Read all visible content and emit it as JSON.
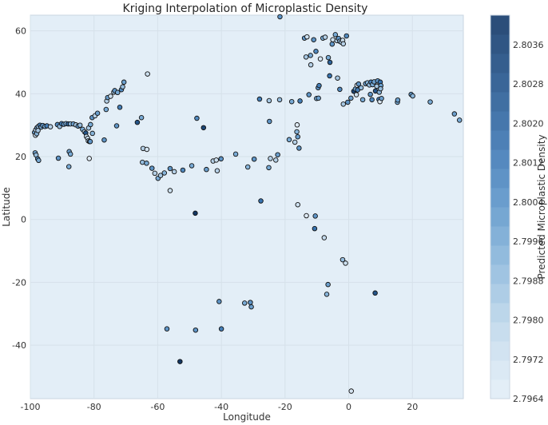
{
  "chart_data": {
    "type": "scatter",
    "title": "Kriging Interpolation of Microplastic Density",
    "xlabel": "Longitude",
    "ylabel": "Latitude",
    "xlim": [
      -100,
      36
    ],
    "ylim": [
      -57,
      65
    ],
    "xticks": [
      -100,
      -80,
      -60,
      -40,
      -20,
      0,
      20
    ],
    "yticks": [
      -40,
      -20,
      0,
      20,
      40,
      60
    ],
    "grid": true,
    "background_color": "#e3eef7",
    "colorbar": {
      "label": "Predicted Microplastic Density",
      "min": 2.7964,
      "max": 2.8042,
      "ticks": [
        "2.7964",
        "2.7972",
        "2.7980",
        "2.7988",
        "2.7996",
        "2.8004",
        "2.8012",
        "2.8020",
        "2.8028",
        "2.8036"
      ],
      "colors": [
        "#e3eef7",
        "#dbe9f4",
        "#d2e3f1",
        "#c8ddee",
        "#bcd6ea",
        "#aecde6",
        "#a0c4e2",
        "#92bbdd",
        "#84b1d8",
        "#76a7d2",
        "#6a9dcd",
        "#5f93c6",
        "#5589bf",
        "#4d80b6",
        "#4677ac",
        "#406fa2",
        "#3a6698",
        "#355e8e",
        "#305684",
        "#2b4e7a"
      ]
    },
    "point_color_range": [
      "#f1f6fb",
      "#0a2850"
    ],
    "series": [
      {
        "values": [
          [
            -98.7,
            27.7,
            0.55
          ],
          [
            -98.3,
            28.5,
            0.3
          ],
          [
            -97.9,
            29.2,
            0.6
          ],
          [
            -97.5,
            29.6,
            0.4
          ],
          [
            -97.0,
            30.0,
            0.7
          ],
          [
            -96.6,
            29.4,
            0.5
          ],
          [
            -96.1,
            29.9,
            0.6
          ],
          [
            -95.4,
            29.6,
            0.5
          ],
          [
            -94.8,
            29.8,
            0.7
          ],
          [
            -98.4,
            26.8,
            0.2
          ],
          [
            -98.0,
            27.3,
            0.45
          ],
          [
            -97.6,
            28.3,
            0.35
          ],
          [
            -93.7,
            29.5,
            0.3
          ],
          [
            -91.5,
            30.2,
            0.65
          ],
          [
            -90.8,
            29.6,
            0.4
          ],
          [
            -90.2,
            30.5,
            0.7
          ],
          [
            -89.5,
            30.3,
            0.6
          ],
          [
            -88.8,
            30.5,
            0.5
          ],
          [
            -88.1,
            30.4,
            0.8
          ],
          [
            -87.4,
            30.4,
            0.45
          ],
          [
            -86.5,
            30.4,
            0.55
          ],
          [
            -85.7,
            30.1,
            0.35
          ],
          [
            -85.0,
            29.7,
            0.6
          ],
          [
            -84.4,
            30.0,
            0.4
          ],
          [
            -83.6,
            28.7,
            0.5
          ],
          [
            -83.0,
            27.9,
            0.3
          ],
          [
            -82.6,
            27.5,
            0.85
          ],
          [
            -82.4,
            26.4,
            0.2
          ],
          [
            -82.0,
            25.8,
            0.25
          ],
          [
            -81.8,
            25.0,
            0.3
          ],
          [
            -81.4,
            24.8,
            0.1
          ],
          [
            -81.7,
            29.1,
            0.35
          ],
          [
            -81.1,
            30.2,
            0.5
          ],
          [
            -80.5,
            27.4,
            0.45
          ],
          [
            -81.2,
            24.8,
            0.6
          ],
          [
            -98.5,
            21.2,
            0.55
          ],
          [
            -98.2,
            20.5,
            0.4
          ],
          [
            -97.7,
            19.3,
            0.65
          ],
          [
            -97.4,
            18.8,
            0.5
          ],
          [
            -91.2,
            19.5,
            0.6
          ],
          [
            -87.8,
            21.6,
            0.55
          ],
          [
            -87.4,
            20.8,
            0.5
          ],
          [
            -87.9,
            16.8,
            0.5
          ],
          [
            -81.5,
            19.4,
            0.1
          ],
          [
            -80.6,
            32.4,
            0.6
          ],
          [
            -79.7,
            33.0,
            0.3
          ],
          [
            -78.9,
            33.8,
            0.55
          ],
          [
            -76.8,
            25.3,
            0.6
          ],
          [
            -76.2,
            35.0,
            0.5
          ],
          [
            -76.0,
            37.7,
            0.3
          ],
          [
            -75.7,
            38.8,
            0.55
          ],
          [
            -74.8,
            39.2,
            0.2
          ],
          [
            -73.8,
            40.5,
            0.35
          ],
          [
            -73.5,
            41.0,
            0.6
          ],
          [
            -72.6,
            40.4,
            0.5
          ],
          [
            -71.4,
            41.3,
            0.65
          ],
          [
            -71.0,
            42.2,
            0.4
          ],
          [
            -70.6,
            43.7,
            0.55
          ],
          [
            -71.9,
            35.7,
            0.7
          ],
          [
            -72.9,
            29.8,
            0.6
          ],
          [
            -66.4,
            30.9,
            0.85
          ],
          [
            -65.1,
            32.4,
            0.5
          ],
          [
            -63.2,
            46.3,
            0.2
          ],
          [
            -64.6,
            22.6,
            0.3
          ],
          [
            -63.4,
            22.3,
            0.15
          ],
          [
            -64.8,
            18.2,
            0.4
          ],
          [
            -63.5,
            17.9,
            0.5
          ],
          [
            -61.8,
            16.3,
            0.6
          ],
          [
            -60.9,
            14.7,
            0.3
          ],
          [
            -59.9,
            13.1,
            0.5
          ],
          [
            -59.1,
            14.0,
            0.35
          ],
          [
            -57.9,
            14.8,
            0.45
          ],
          [
            -56.1,
            16.2,
            0.6
          ],
          [
            -54.8,
            15.2,
            0.3
          ],
          [
            -56.1,
            9.2,
            0.2
          ],
          [
            -52.1,
            15.7,
            0.65
          ],
          [
            -49.3,
            17.1,
            0.5
          ],
          [
            -47.7,
            32.2,
            0.65
          ],
          [
            -45.6,
            29.2,
            0.9
          ],
          [
            -44.7,
            15.9,
            0.55
          ],
          [
            -42.6,
            18.6,
            0.3
          ],
          [
            -41.6,
            18.9,
            0.2
          ],
          [
            -41.3,
            15.5,
            0.3
          ],
          [
            -40.1,
            19.3,
            0.6
          ],
          [
            -48.2,
            2.0,
            0.95
          ],
          [
            -35.5,
            20.8,
            0.5
          ],
          [
            -31.7,
            16.7,
            0.45
          ],
          [
            -29.7,
            19.2,
            0.6
          ],
          [
            -27.6,
            5.9,
            0.75
          ],
          [
            -25.1,
            16.5,
            0.5
          ],
          [
            -24.6,
            19.4,
            0.3
          ],
          [
            -22.9,
            18.9,
            0.3
          ],
          [
            -22.3,
            20.6,
            0.55
          ],
          [
            -28.0,
            38.3,
            0.7
          ],
          [
            -25.0,
            37.8,
            0.35
          ],
          [
            -21.7,
            38.1,
            0.4
          ],
          [
            -24.9,
            31.2,
            0.6
          ],
          [
            -18.7,
            25.4,
            0.5
          ],
          [
            -16.9,
            24.6,
            0.3
          ],
          [
            -16.3,
            27.9,
            0.45
          ],
          [
            -16.2,
            30.1,
            0.1
          ],
          [
            -16.0,
            26.3,
            0.55
          ],
          [
            -15.6,
            22.7,
            0.6
          ],
          [
            -17.9,
            37.5,
            0.5
          ],
          [
            -15.3,
            37.7,
            0.7
          ],
          [
            -12.5,
            39.7,
            0.6
          ],
          [
            -10.1,
            38.5,
            0.5
          ],
          [
            -9.5,
            38.6,
            0.55
          ],
          [
            -9.6,
            41.9,
            0.6
          ],
          [
            -9.3,
            42.6,
            0.7
          ],
          [
            -16.0,
            4.7,
            0.2
          ],
          [
            -13.3,
            1.2,
            0.1
          ],
          [
            -10.5,
            1.1,
            0.6
          ],
          [
            -10.7,
            -2.9,
            0.75
          ],
          [
            -7.7,
            -5.8,
            0.25
          ],
          [
            -1.9,
            -12.8,
            0.4
          ],
          [
            -1.0,
            -13.9,
            0.2
          ],
          [
            -6.5,
            -20.7,
            0.55
          ],
          [
            -6.9,
            -23.8,
            0.45
          ],
          [
            8.3,
            -23.4,
            0.85
          ],
          [
            0.8,
            -54.6,
            0.15
          ],
          [
            -21.6,
            64.5,
            0.6
          ],
          [
            -13.9,
            57.7,
            0.6
          ],
          [
            -13.1,
            58.1,
            0.2
          ],
          [
            -13.4,
            51.7,
            0.35
          ],
          [
            -12.0,
            52.2,
            0.5
          ],
          [
            -11.9,
            49.2,
            0.3
          ],
          [
            -11.0,
            57.2,
            0.6
          ],
          [
            -10.3,
            53.5,
            0.65
          ],
          [
            -8.9,
            51.1,
            0.15
          ],
          [
            -8.1,
            57.7,
            0.5
          ],
          [
            -7.4,
            58.0,
            0.3
          ],
          [
            -6.4,
            51.5,
            0.5
          ],
          [
            -5.9,
            50.0,
            0.8
          ],
          [
            -5.2,
            55.8,
            0.6
          ],
          [
            -5.0,
            57.2,
            0.2
          ],
          [
            -4.2,
            58.8,
            0.5
          ],
          [
            -3.7,
            56.9,
            0.3
          ],
          [
            -3.2,
            57.6,
            0.6
          ],
          [
            -2.8,
            56.7,
            0.45
          ],
          [
            -2.3,
            56.4,
            0.35
          ],
          [
            -1.9,
            57.0,
            0.2
          ],
          [
            -1.7,
            55.9,
            0.3
          ],
          [
            -0.7,
            58.4,
            0.65
          ],
          [
            -6.0,
            45.7,
            0.75
          ],
          [
            -3.5,
            45.0,
            0.35
          ],
          [
            -2.8,
            41.4,
            0.65
          ],
          [
            -1.7,
            36.7,
            0.35
          ],
          [
            -0.3,
            37.3,
            0.6
          ],
          [
            0.7,
            38.6,
            0.55
          ],
          [
            1.6,
            40.8,
            0.9
          ],
          [
            2.1,
            41.5,
            0.55
          ],
          [
            2.8,
            41.2,
            0.7
          ],
          [
            2.4,
            39.7,
            0.2
          ],
          [
            2.6,
            42.7,
            0.1
          ],
          [
            3.1,
            43.1,
            0.6
          ],
          [
            3.9,
            41.9,
            0.4
          ],
          [
            4.4,
            38.1,
            0.5
          ],
          [
            5.3,
            43.2,
            0.55
          ],
          [
            5.9,
            43.5,
            0.45
          ],
          [
            6.5,
            42.8,
            0.4
          ],
          [
            6.8,
            39.8,
            0.6
          ],
          [
            7.0,
            43.7,
            0.7
          ],
          [
            7.5,
            42.9,
            0.5
          ],
          [
            8.0,
            43.8,
            0.55
          ],
          [
            7.3,
            38.1,
            0.65
          ],
          [
            8.4,
            40.9,
            0.85
          ],
          [
            8.8,
            42.4,
            0.35
          ],
          [
            9.1,
            44.1,
            0.6
          ],
          [
            9.6,
            40.5,
            0.45
          ],
          [
            9.5,
            38.2,
            0.7
          ],
          [
            9.8,
            37.5,
            0.1
          ],
          [
            9.9,
            43.7,
            0.75
          ],
          [
            10.1,
            42.6,
            0.55
          ],
          [
            10.3,
            38.5,
            0.55
          ],
          [
            10.0,
            41.6,
            0.4
          ],
          [
            15.3,
            37.3,
            0.5
          ],
          [
            15.4,
            38.0,
            0.55
          ],
          [
            19.6,
            39.8,
            0.6
          ],
          [
            20.1,
            39.3,
            0.45
          ],
          [
            25.6,
            37.4,
            0.5
          ],
          [
            33.2,
            33.6,
            0.55
          ],
          [
            34.8,
            31.6,
            0.5
          ],
          [
            -32.7,
            -26.6,
            0.5
          ],
          [
            -30.9,
            -26.4,
            0.6
          ],
          [
            -30.6,
            -27.8,
            0.55
          ],
          [
            -40.7,
            -26.1,
            0.6
          ],
          [
            -40.0,
            -34.8,
            0.7
          ],
          [
            -48.1,
            -35.2,
            0.6
          ],
          [
            -57.1,
            -34.8,
            0.6
          ],
          [
            -53.0,
            -45.2,
            0.95
          ]
        ]
      }
    ]
  }
}
